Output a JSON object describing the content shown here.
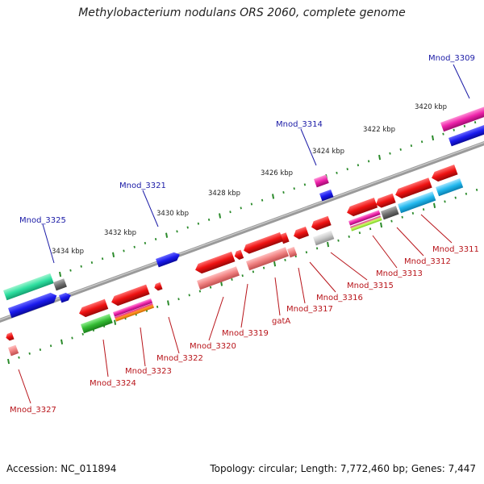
{
  "header": {
    "title": "Methylobacterium nodulans ORS 2060, complete genome"
  },
  "footer": {
    "accession": "Accession: NC_011894",
    "topology": "Topology: circular; Length: 7,772,460 bp; Genes: 7,447"
  },
  "scale_labels": [
    "3420 kbp",
    "3422 kbp",
    "3424 kbp",
    "3426 kbp",
    "3428 kbp",
    "3430 kbp",
    "3432 kbp",
    "3434 kbp"
  ],
  "upper_strand_labels": [
    "Mnod_3309",
    "Mnod_3314",
    "Mnod_3321",
    "Mnod_3325"
  ],
  "lower_strand_labels": [
    "Mnod_3311",
    "Mnod_3312",
    "Mnod_3313",
    "Mnod_3315",
    "Mnod_3316",
    "Mnod_3317",
    "gatA",
    "Mnod_3319",
    "Mnod_3320",
    "Mnod_3322",
    "Mnod_3323",
    "Mnod_3324",
    "Mnod_3327"
  ],
  "colors": {
    "backbone": "#8a8a8a",
    "forward_cds": "#1a1aee",
    "reverse_cds": "#ee1111",
    "light_red": "#f08080",
    "teal": "#2ee0a0",
    "cyan": "#22b8ee",
    "magenta": "#ee22aa",
    "green": "#33bb33",
    "grey": "#707070",
    "scale_dot": "#2a8a2a",
    "label_blue": "#1a1aa6",
    "label_red": "#b8141a"
  }
}
